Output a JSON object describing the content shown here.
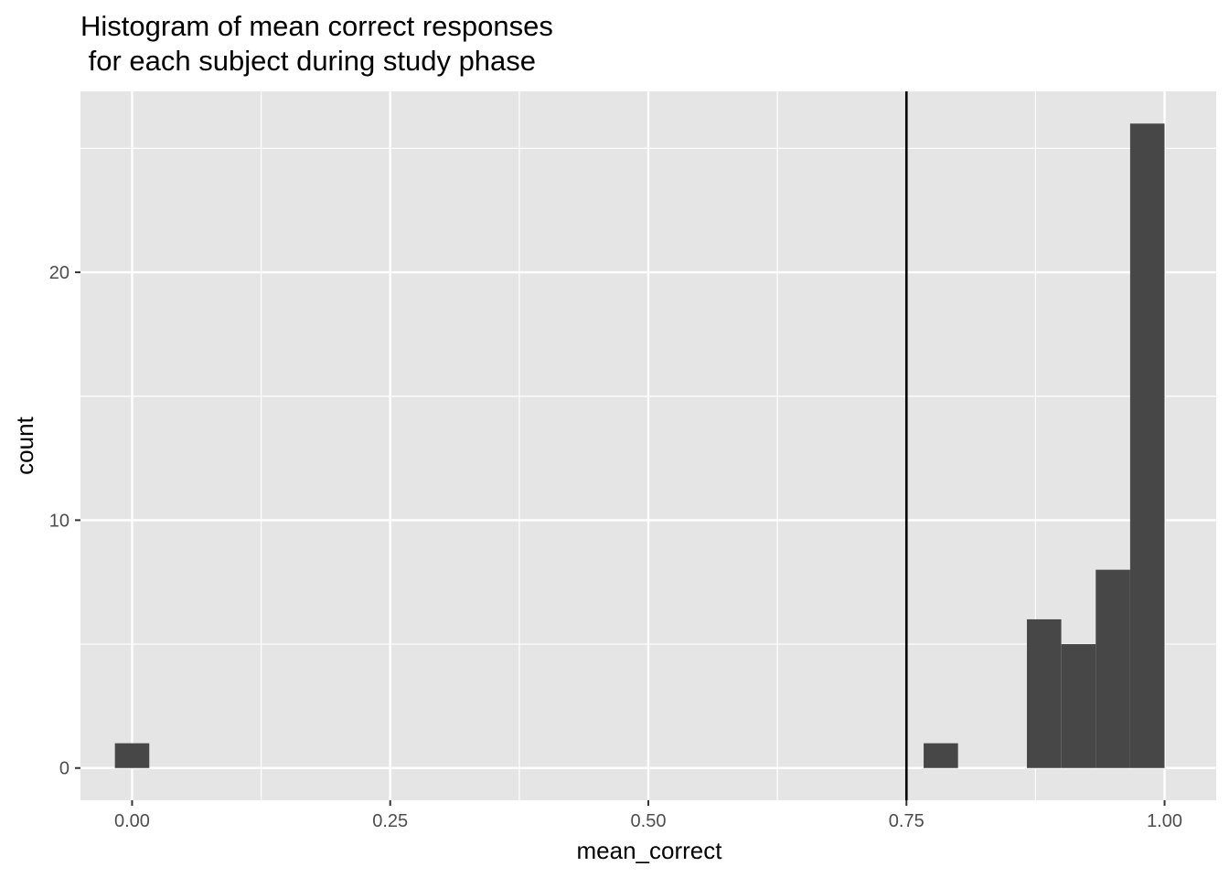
{
  "chart_data": {
    "type": "bar",
    "title": "Histogram of mean correct responses\n for each subject during study phase",
    "xlabel": "mean_correct",
    "ylabel": "count",
    "xlim": [
      -0.05,
      1.05
    ],
    "ylim": [
      -1.3,
      27.3
    ],
    "x_ticks": [
      0.0,
      0.25,
      0.5,
      0.75,
      1.0
    ],
    "x_tick_labels": [
      "0.00",
      "0.25",
      "0.50",
      "0.75",
      "1.00"
    ],
    "y_ticks": [
      0,
      10,
      20
    ],
    "y_tick_labels": [
      "0",
      "10",
      "20"
    ],
    "bin_width": 0.0333,
    "bins": [
      {
        "x": 0.0,
        "count": 1
      },
      {
        "x": 0.7833,
        "count": 1
      },
      {
        "x": 0.8833,
        "count": 6
      },
      {
        "x": 0.9167,
        "count": 5
      },
      {
        "x": 0.95,
        "count": 8
      },
      {
        "x": 0.9833,
        "count": 26
      }
    ],
    "vline": {
      "x": 0.75,
      "color": "#000000"
    },
    "bar_color": "#474747",
    "panel_color": "#e5e5e5",
    "grid_color": "#ffffff",
    "grid": true,
    "legend": "none"
  }
}
